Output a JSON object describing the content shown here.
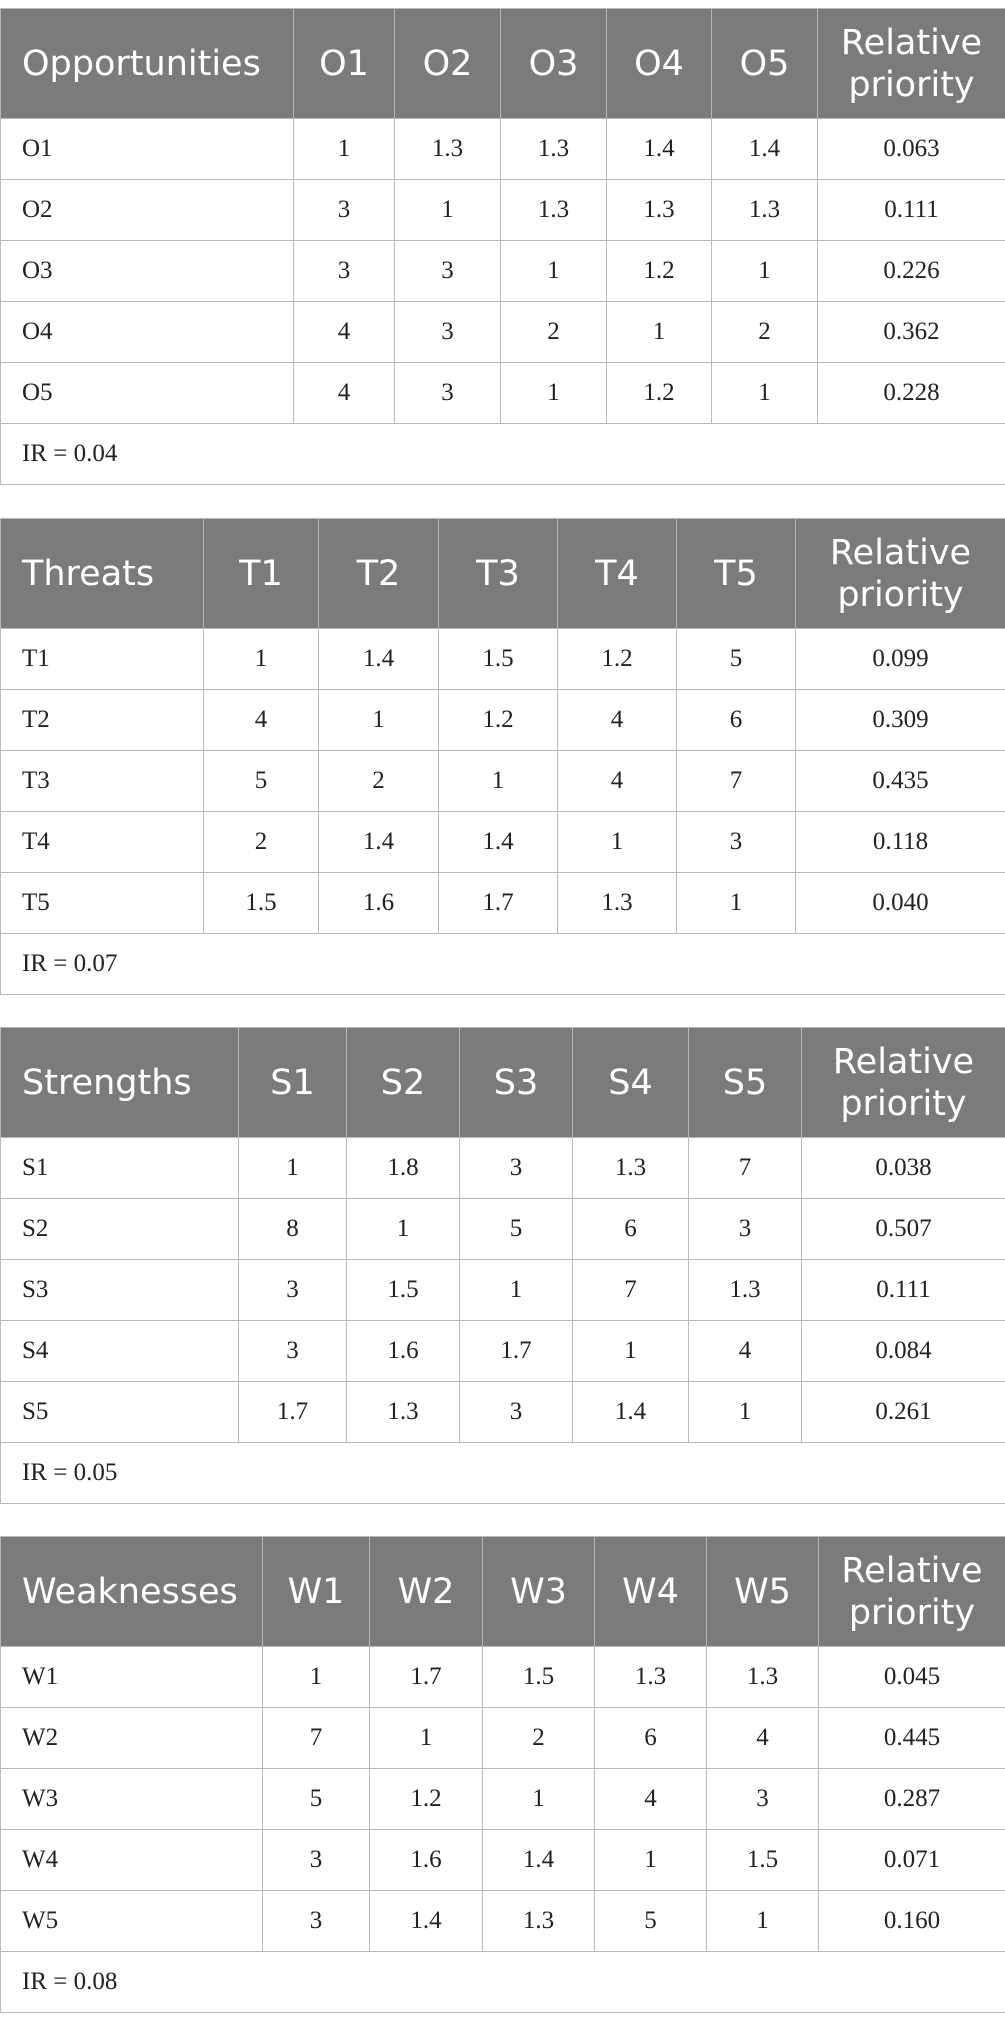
{
  "tables": [
    {
      "headers": [
        "Opportunities",
        "O1",
        "O2",
        "O3",
        "O4",
        "O5",
        "Relative priority"
      ],
      "rows": [
        [
          "O1",
          "1",
          "1.3",
          "1.3",
          "1.4",
          "1.4",
          "0.063"
        ],
        [
          "O2",
          "3",
          "1",
          "1.3",
          "1.3",
          "1.3",
          "0.111"
        ],
        [
          "O3",
          "3",
          "3",
          "1",
          "1.2",
          "1",
          "0.226"
        ],
        [
          "O4",
          "4",
          "3",
          "2",
          "1",
          "2",
          "0.362"
        ],
        [
          "O5",
          "4",
          "3",
          "1",
          "1.2",
          "1",
          "0.228"
        ]
      ],
      "note": "IR = 0.04"
    },
    {
      "headers": [
        "Threats",
        "T1",
        "T2",
        "T3",
        "T4",
        "T5",
        "Relative priority"
      ],
      "rows": [
        [
          "T1",
          "1",
          "1.4",
          "1.5",
          "1.2",
          "5",
          "0.099"
        ],
        [
          "T2",
          "4",
          "1",
          "1.2",
          "4",
          "6",
          "0.309"
        ],
        [
          "T3",
          "5",
          "2",
          "1",
          "4",
          "7",
          "0.435"
        ],
        [
          "T4",
          "2",
          "1.4",
          "1.4",
          "1",
          "3",
          "0.118"
        ],
        [
          "T5",
          "1.5",
          "1.6",
          "1.7",
          "1.3",
          "1",
          "0.040"
        ]
      ],
      "note": "IR = 0.07"
    },
    {
      "headers": [
        "Strengths",
        "S1",
        "S2",
        "S3",
        "S4",
        "S5",
        "Relative priority"
      ],
      "rows": [
        [
          "S1",
          "1",
          "1.8",
          "3",
          "1.3",
          "7",
          "0.038"
        ],
        [
          "S2",
          "8",
          "1",
          "5",
          "6",
          "3",
          "0.507"
        ],
        [
          "S3",
          "3",
          "1.5",
          "1",
          "7",
          "1.3",
          "0.111"
        ],
        [
          "S4",
          "3",
          "1.6",
          "1.7",
          "1",
          "4",
          "0.084"
        ],
        [
          "S5",
          "1.7",
          "1.3",
          "3",
          "1.4",
          "1",
          "0.261"
        ]
      ],
      "note": "IR = 0.05"
    },
    {
      "headers": [
        "Weaknesses",
        "W1",
        "W2",
        "W3",
        "W4",
        "W5",
        "Relative priority"
      ],
      "rows": [
        [
          "W1",
          "1",
          "1.7",
          "1.5",
          "1.3",
          "1.3",
          "0.045"
        ],
        [
          "W2",
          "7",
          "1",
          "2",
          "6",
          "4",
          "0.445"
        ],
        [
          "W3",
          "5",
          "1.2",
          "1",
          "4",
          "3",
          "0.287"
        ],
        [
          "W4",
          "3",
          "1.6",
          "1.4",
          "1",
          "1.5",
          "0.071"
        ],
        [
          "W5",
          "3",
          "1.4",
          "1.3",
          "5",
          "1",
          "0.160"
        ]
      ],
      "note": "IR = 0.08"
    }
  ]
}
